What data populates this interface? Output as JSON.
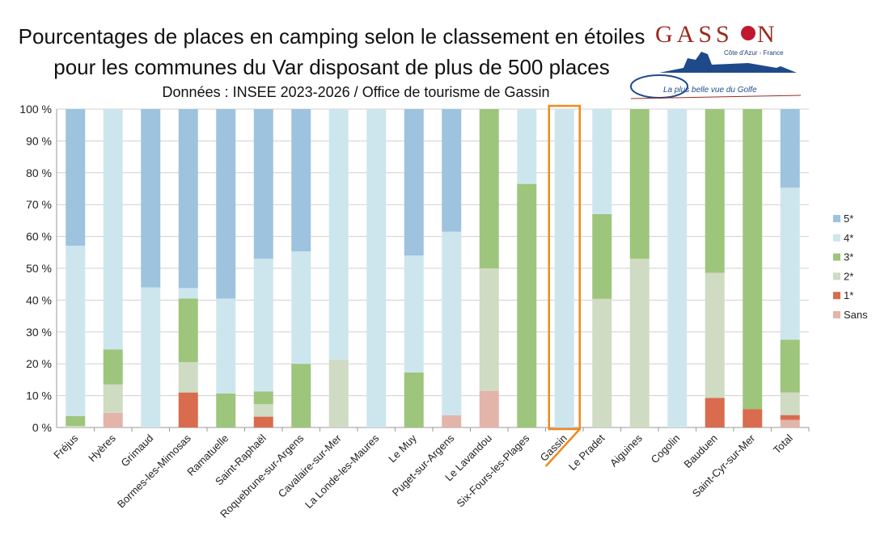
{
  "chart_data": {
    "type": "bar",
    "stacked": true,
    "title": "Pourcentages de places en camping selon le classement en étoiles",
    "title_line2": "pour les communes du Var disposant de plus de 500 places",
    "subtitle": "Données : INSEE 2023-2026 / Office de tourisme de Gassin",
    "xlabel": "",
    "ylabel": "",
    "ylim": [
      0,
      100
    ],
    "yticks": [
      "0 %",
      "10 %",
      "20 %",
      "30 %",
      "40 %",
      "50 %",
      "60 %",
      "70 %",
      "80 %",
      "90 %",
      "100 %"
    ],
    "grid": true,
    "legend_position": "right",
    "highlight": "Gassin",
    "highlight_color": "#f08a1c",
    "categories": [
      "Fréjus",
      "Hyères",
      "Grimaud",
      "Bormes-les-Mimosas",
      "Ramatuelle",
      "Saint-Raphaël",
      "Roquebrune-sur-Argens",
      "Cavalaire-sur-Mer",
      "La Londe-les-Maures",
      "Le Muy",
      "Puget-sur-Argens",
      "Le Lavandou",
      "Six-Fours-les-Plages",
      "Gassin",
      "Le Pradet",
      "Aiguines",
      "Cogolin",
      "Bauduen",
      "Saint-Cyr-sur-Mer",
      "Total"
    ],
    "series": [
      {
        "name": "Sans",
        "color": "#e3b4aa",
        "values": [
          0,
          4.6,
          0,
          0,
          0,
          0,
          0,
          0,
          0,
          0,
          3.8,
          11.5,
          0,
          0,
          0,
          0,
          0,
          0,
          0,
          2.4
        ]
      },
      {
        "name": "1*",
        "color": "#d96b4f",
        "values": [
          0,
          0,
          0,
          11,
          0,
          3.4,
          0,
          0,
          0,
          0,
          0,
          0,
          0,
          0,
          0,
          0,
          0,
          9.3,
          5.8,
          1.5
        ]
      },
      {
        "name": "2*",
        "color": "#cfdbc2",
        "values": [
          0.5,
          8.9,
          0,
          9.5,
          0,
          3.9,
          0,
          21.3,
          0,
          0,
          0,
          38.5,
          0,
          0,
          40.4,
          53,
          0,
          39.3,
          0,
          7.1
        ]
      },
      {
        "name": "3*",
        "color": "#9dc57c",
        "values": [
          3.1,
          11,
          0,
          20,
          10.7,
          4,
          20,
          0,
          0,
          17.3,
          0,
          50,
          76.5,
          0,
          26.6,
          47,
          0,
          51.4,
          94.2,
          16.6
        ]
      },
      {
        "name": "4*",
        "color": "#cde6ee",
        "values": [
          53.5,
          75.5,
          44,
          3.3,
          29.8,
          41.7,
          35.3,
          78.7,
          100,
          36.7,
          57.7,
          0,
          23.5,
          100,
          33,
          0,
          100,
          0,
          0,
          47.7
        ]
      },
      {
        "name": "5*",
        "color": "#9dc3de",
        "values": [
          42.9,
          0,
          56,
          56.2,
          59.5,
          47,
          44.7,
          0,
          0,
          46,
          38.5,
          0,
          0,
          0,
          0,
          0,
          0,
          0,
          0,
          24.7
        ]
      }
    ]
  },
  "logo": {
    "name": "GASSIN",
    "tagline": "Côte d'Azur - France",
    "slogan": "La plus belle vue du Golfe"
  }
}
